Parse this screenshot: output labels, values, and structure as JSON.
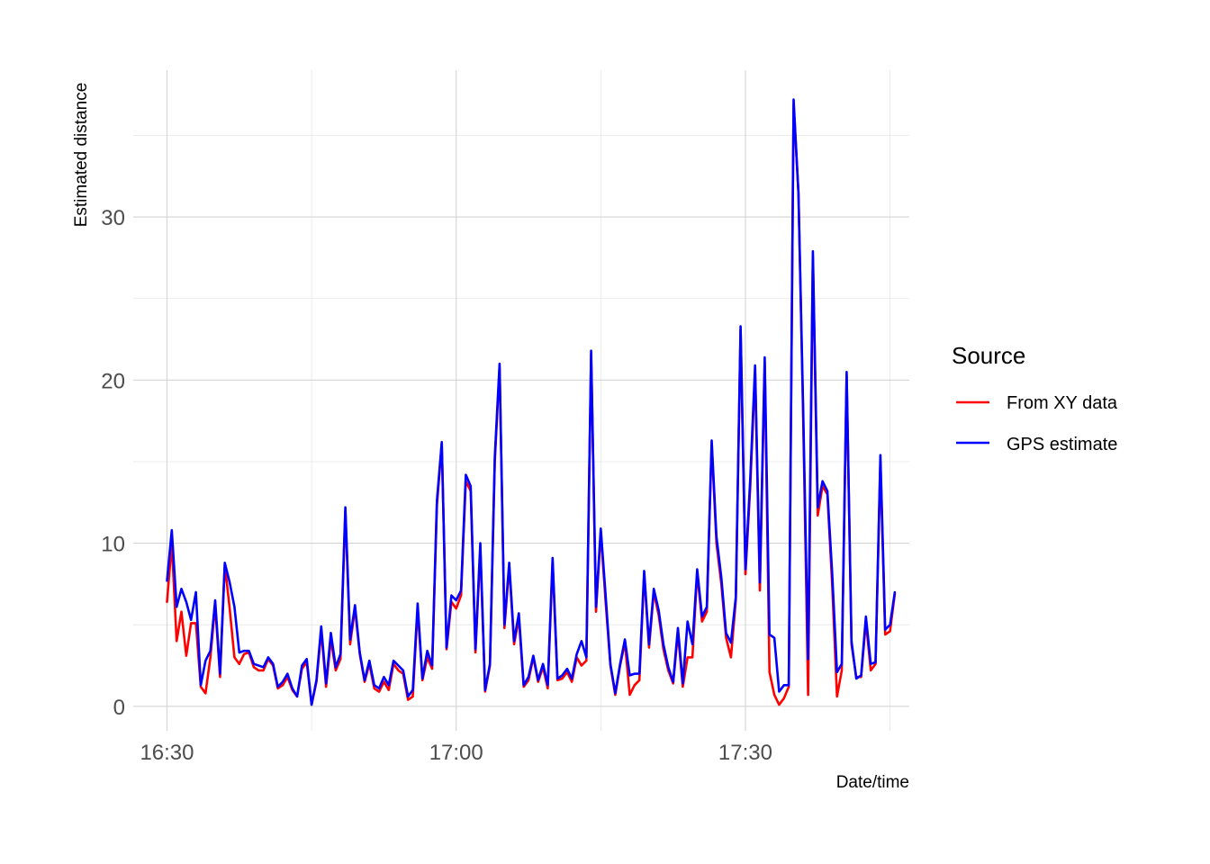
{
  "chart_data": {
    "type": "line",
    "title": "",
    "xlabel": "Date/time",
    "ylabel": "Estimated distance",
    "x_unit": "time of day (HH:MM)",
    "x_ticks": [
      "16:30",
      "17:00",
      "17:30"
    ],
    "x_tick_minutes": [
      990,
      1020,
      1050
    ],
    "x_range_minutes": [
      986.5,
      1067.0
    ],
    "ylim": [
      -1.5,
      39
    ],
    "y_ticks": [
      0,
      10,
      20,
      30
    ],
    "y_tick_labels": [
      "0",
      "10",
      "20",
      "30"
    ],
    "grid": true,
    "legend": {
      "title": "Source",
      "position": "right"
    },
    "x": [
      990.0,
      990.5,
      991.0,
      991.5,
      992.0,
      992.5,
      993.0,
      993.5,
      994.0,
      994.5,
      995.0,
      995.5,
      996.0,
      996.5,
      997.0,
      997.5,
      998.0,
      998.5,
      999.0,
      999.5,
      1000.0,
      1000.5,
      1001.0,
      1001.5,
      1002.0,
      1002.5,
      1003.0,
      1003.5,
      1004.0,
      1004.5,
      1005.0,
      1005.5,
      1006.0,
      1006.5,
      1007.0,
      1007.5,
      1008.0,
      1008.5,
      1009.0,
      1009.5,
      1010.0,
      1010.5,
      1011.0,
      1011.5,
      1012.0,
      1012.5,
      1013.0,
      1013.5,
      1014.0,
      1014.5,
      1015.0,
      1015.5,
      1016.0,
      1016.5,
      1017.0,
      1017.5,
      1018.0,
      1018.5,
      1019.0,
      1019.5,
      1020.0,
      1020.5,
      1021.0,
      1021.5,
      1022.0,
      1022.5,
      1023.0,
      1023.5,
      1024.0,
      1024.5,
      1025.0,
      1025.5,
      1026.0,
      1026.5,
      1027.0,
      1027.5,
      1028.0,
      1028.5,
      1029.0,
      1029.5,
      1030.0,
      1030.5,
      1031.0,
      1031.5,
      1032.0,
      1032.5,
      1033.0,
      1033.5,
      1034.0,
      1034.5,
      1035.0,
      1035.5,
      1036.0,
      1036.5,
      1037.0,
      1037.5,
      1038.0,
      1038.5,
      1039.0,
      1039.5,
      1040.0,
      1040.5,
      1041.0,
      1041.5,
      1042.0,
      1042.5,
      1043.0,
      1043.5,
      1044.0,
      1044.5,
      1045.0,
      1045.5,
      1046.0,
      1046.5,
      1047.0,
      1047.5,
      1048.0,
      1048.5,
      1049.0,
      1049.5,
      1050.0,
      1050.5,
      1051.0,
      1051.5,
      1052.0,
      1052.5,
      1053.0,
      1053.5,
      1054.0,
      1054.5,
      1055.0,
      1055.5,
      1056.0,
      1056.5,
      1057.0,
      1057.5,
      1058.0,
      1058.5,
      1059.0,
      1059.5,
      1060.0,
      1060.5,
      1061.0,
      1061.5,
      1062.0,
      1062.5,
      1063.0,
      1063.5,
      1064.0,
      1064.5,
      1065.0,
      1065.5
    ],
    "series": [
      {
        "name": "From XY data",
        "color": "#ff0000",
        "values": [
          6.4,
          10.0,
          4.0,
          5.8,
          3.1,
          5.1,
          5.1,
          1.2,
          0.8,
          3.0,
          6.2,
          1.8,
          8.7,
          6.0,
          3.0,
          2.6,
          3.2,
          3.3,
          2.4,
          2.2,
          2.2,
          2.9,
          2.5,
          1.1,
          1.3,
          1.8,
          1.0,
          0.6,
          2.3,
          2.7,
          0.1,
          1.5,
          4.6,
          1.2,
          4.1,
          2.2,
          2.9,
          12.0,
          3.8,
          6.0,
          3.2,
          1.5,
          2.6,
          1.1,
          0.9,
          1.5,
          1.0,
          2.6,
          2.2,
          2.0,
          0.4,
          0.6,
          6.0,
          1.6,
          3.0,
          2.3,
          12.3,
          16.1,
          3.5,
          6.4,
          6.0,
          6.8,
          13.8,
          13.2,
          3.3,
          9.6,
          0.9,
          2.5,
          15.0,
          20.8,
          4.8,
          8.6,
          3.8,
          5.4,
          1.2,
          1.6,
          3.0,
          1.5,
          2.4,
          1.1,
          8.8,
          1.6,
          1.7,
          2.1,
          1.5,
          3.0,
          2.5,
          2.8,
          21.6,
          5.8,
          10.7,
          6.4,
          2.5,
          0.7,
          2.5,
          3.9,
          0.7,
          1.3,
          1.6,
          8.1,
          3.6,
          7.0,
          5.6,
          3.5,
          2.2,
          1.4,
          4.5,
          1.2,
          3.0,
          3.0,
          8.2,
          5.2,
          5.8,
          16.1,
          10.0,
          7.5,
          4.2,
          3.0,
          6.5,
          23.1,
          8.1,
          13.4,
          20.5,
          7.1,
          21.1,
          2.1,
          0.7,
          0.1,
          0.5,
          1.2,
          36.9,
          31.5,
          17.5,
          0.7,
          27.6,
          11.7,
          13.5,
          13.0,
          7.5,
          0.6,
          2.2,
          20.3,
          3.8,
          1.8,
          1.8,
          5.2,
          2.2,
          2.6,
          15.0,
          4.4,
          4.6,
          6.9
        ]
      },
      {
        "name": "GPS estimate",
        "color": "#0000ff",
        "values": [
          7.7,
          10.8,
          6.1,
          7.2,
          6.4,
          5.3,
          7.0,
          1.3,
          2.8,
          3.4,
          6.5,
          2.0,
          8.8,
          7.6,
          6.1,
          3.3,
          3.4,
          3.4,
          2.6,
          2.5,
          2.4,
          3.0,
          2.6,
          1.2,
          1.5,
          2.0,
          1.1,
          0.6,
          2.5,
          2.9,
          0.1,
          1.6,
          4.9,
          1.4,
          4.5,
          2.4,
          3.2,
          12.2,
          4.1,
          6.2,
          3.3,
          1.6,
          2.8,
          1.3,
          1.1,
          1.8,
          1.3,
          2.8,
          2.5,
          2.2,
          0.6,
          1.0,
          6.3,
          1.7,
          3.4,
          2.5,
          12.6,
          16.2,
          3.6,
          6.8,
          6.5,
          7.1,
          14.2,
          13.5,
          3.5,
          10.0,
          1.0,
          2.6,
          15.3,
          21.0,
          5.0,
          8.8,
          4.0,
          5.7,
          1.3,
          1.8,
          3.1,
          1.6,
          2.6,
          1.3,
          9.1,
          1.7,
          1.9,
          2.3,
          1.7,
          3.2,
          4.0,
          3.0,
          21.8,
          6.1,
          10.9,
          6.8,
          2.6,
          0.8,
          2.6,
          4.1,
          1.9,
          2.0,
          2.0,
          8.3,
          3.8,
          7.2,
          5.9,
          3.8,
          2.4,
          1.5,
          4.8,
          1.4,
          5.2,
          3.8,
          8.4,
          5.5,
          6.1,
          16.3,
          10.4,
          7.9,
          4.5,
          3.9,
          6.7,
          23.3,
          8.4,
          13.9,
          20.9,
          7.6,
          21.4,
          4.4,
          4.2,
          0.9,
          1.3,
          1.3,
          37.2,
          31.4,
          18.0,
          2.9,
          27.9,
          12.2,
          13.8,
          13.2,
          8.2,
          2.1,
          2.6,
          20.5,
          4.0,
          1.7,
          1.9,
          5.5,
          2.6,
          2.7,
          15.4,
          4.7,
          5.0,
          7.0
        ]
      }
    ]
  }
}
